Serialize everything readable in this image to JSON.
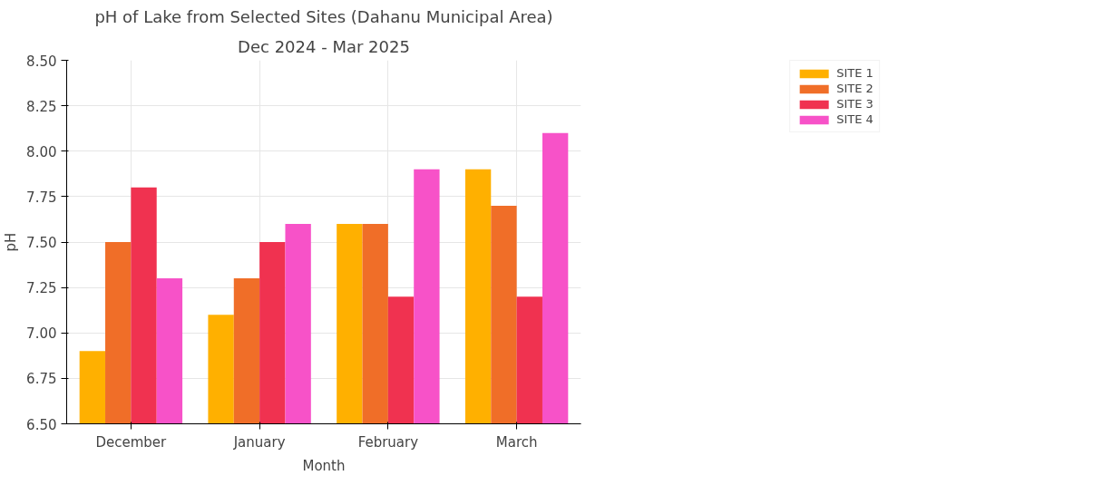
{
  "chart_data": {
    "type": "bar",
    "title": "pH of Lake from Selected Sites (Dahanu Municipal Area)",
    "subtitle": "Dec 2024 - Mar 2025",
    "xlabel": "Month",
    "ylabel": "pH",
    "categories": [
      "December",
      "January",
      "February",
      "March"
    ],
    "series": [
      {
        "name": "SITE 1",
        "color": "#ffb000",
        "values": [
          6.9,
          7.1,
          7.6,
          7.9
        ]
      },
      {
        "name": "SITE 2",
        "color": "#f06e28",
        "values": [
          7.5,
          7.3,
          7.6,
          7.7
        ]
      },
      {
        "name": "SITE 3",
        "color": "#f03250",
        "values": [
          7.8,
          7.5,
          7.2,
          7.2
        ]
      },
      {
        "name": "SITE 4",
        "color": "#f752c8",
        "values": [
          7.3,
          7.6,
          7.9,
          8.1
        ]
      }
    ],
    "ylim": [
      6.5,
      8.5
    ],
    "yticks": [
      {
        "value": 6.5,
        "label": "6.50"
      },
      {
        "value": 6.75,
        "label": "6.75"
      },
      {
        "value": 7.0,
        "label": "7.00"
      },
      {
        "value": 7.25,
        "label": "7.25"
      },
      {
        "value": 7.5,
        "label": "7.50"
      },
      {
        "value": 7.75,
        "label": "7.75"
      },
      {
        "value": 8.0,
        "label": "8.00"
      },
      {
        "value": 8.25,
        "label": "8.25"
      },
      {
        "value": 8.5,
        "label": "8.50"
      }
    ],
    "grid": true,
    "legend": "top right"
  }
}
